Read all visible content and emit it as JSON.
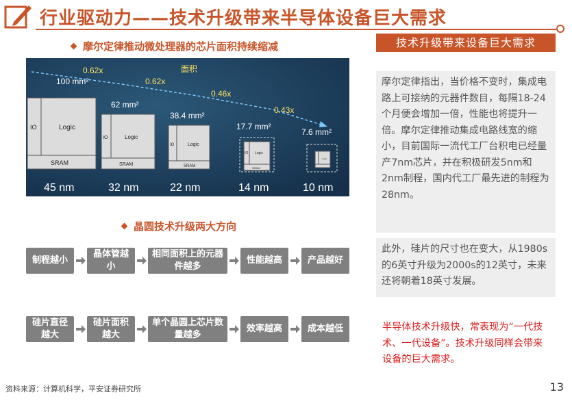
{
  "header": {
    "title": "行业驱动力——技术升级带来半导体设备巨大需求"
  },
  "left": {
    "subtitle_moore": "摩尔定律推动微处理器的芯片面积持续缩减",
    "moore_graphic": {
      "heading": "面积",
      "chips": [
        {
          "node": "45 nm",
          "area": "100 mm²"
        },
        {
          "node": "32 nm",
          "area": "62 mm²"
        },
        {
          "node": "22 nm",
          "area": "38.4 mm²"
        },
        {
          "node": "14 nm",
          "area": "17.7 mm²"
        },
        {
          "node": "10 nm",
          "area": "7.6 mm²"
        }
      ],
      "ratios": [
        "0.62x",
        "0.62x",
        "0.46x",
        "0.43x"
      ],
      "block_labels": {
        "io": "IO",
        "logic": "Logic",
        "sram": "SRAM"
      }
    },
    "subtitle_wafer": "晶圆技术升级两大方向",
    "flow_row_1": [
      "制程越小",
      "晶体管越小",
      "相同面积上的元器件越多",
      "性能越高",
      "产品越好"
    ],
    "flow_row_2": [
      "硅片直径越大",
      "硅片面积越大",
      "单个晶圆上芯片数量越多",
      "效率越高",
      "成本越低"
    ]
  },
  "right": {
    "header": "技术升级带来设备巨大需求",
    "panel_1": "摩尔定律指出，当价格不变时，集成电路上可接纳的元器件数目，每隔18-24个月便会增加一倍，性能也将提升一倍。摩尔定律推动集成电路线宽的缩小，目前国际一流代工厂台积电已经量产7nm芯片，并在积极研发5nm和2nm制程，国内代工厂最先进的制程为28nm。",
    "panel_2": "此外，硅片的尺寸也在变大，从1980s的6英寸升级为2000s的12英寸，未来还将朝着18英寸发展。",
    "red_text": "半导体技术升级快，常表现为“一代技术、一代设备”。技术升级同样会带来设备的巨大需求。"
  },
  "footer": {
    "source": "资料来源：计算机科学，平安证券研究所",
    "page_number": "13"
  },
  "colors": {
    "accent": "#c8552a",
    "flow_box": "#808080",
    "panel_bg": "#eeeeee",
    "highlight_red": "#d91e1e",
    "graphic_bg": "#1b3c58"
  }
}
